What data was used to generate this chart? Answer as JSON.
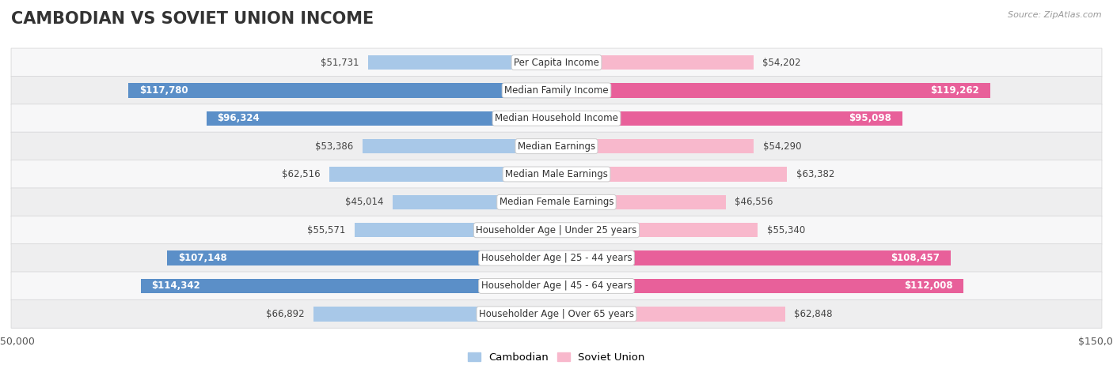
{
  "title": "CAMBODIAN VS SOVIET UNION INCOME",
  "source": "Source: ZipAtlas.com",
  "categories": [
    "Per Capita Income",
    "Median Family Income",
    "Median Household Income",
    "Median Earnings",
    "Median Male Earnings",
    "Median Female Earnings",
    "Householder Age | Under 25 years",
    "Householder Age | 25 - 44 years",
    "Householder Age | 45 - 64 years",
    "Householder Age | Over 65 years"
  ],
  "cambodian_values": [
    51731,
    117780,
    96324,
    53386,
    62516,
    45014,
    55571,
    107148,
    114342,
    66892
  ],
  "soviet_values": [
    54202,
    119262,
    95098,
    54290,
    63382,
    46556,
    55340,
    108457,
    112008,
    62848
  ],
  "cambodian_labels": [
    "$51,731",
    "$117,780",
    "$96,324",
    "$53,386",
    "$62,516",
    "$45,014",
    "$55,571",
    "$107,148",
    "$114,342",
    "$66,892"
  ],
  "soviet_labels": [
    "$54,202",
    "$119,262",
    "$95,098",
    "$54,290",
    "$63,382",
    "$46,556",
    "$55,340",
    "$108,457",
    "$112,008",
    "$62,848"
  ],
  "cambodian_color_light": "#a8c8e8",
  "cambodian_color_dark": "#5b8fc8",
  "soviet_color_light": "#f8b8cc",
  "soviet_color_dark": "#e8609a",
  "max_value": 150000,
  "bar_height": 0.52,
  "background_color": "#ffffff",
  "title_fontsize": 15,
  "label_fontsize": 8.5,
  "legend_fontsize": 9.5,
  "axis_label_fontsize": 9,
  "cam_threshold": 75000,
  "sov_threshold": 75000,
  "row_colors": [
    "#f7f7f8",
    "#eeeeef"
  ],
  "row_border_color": "#d8d8da"
}
